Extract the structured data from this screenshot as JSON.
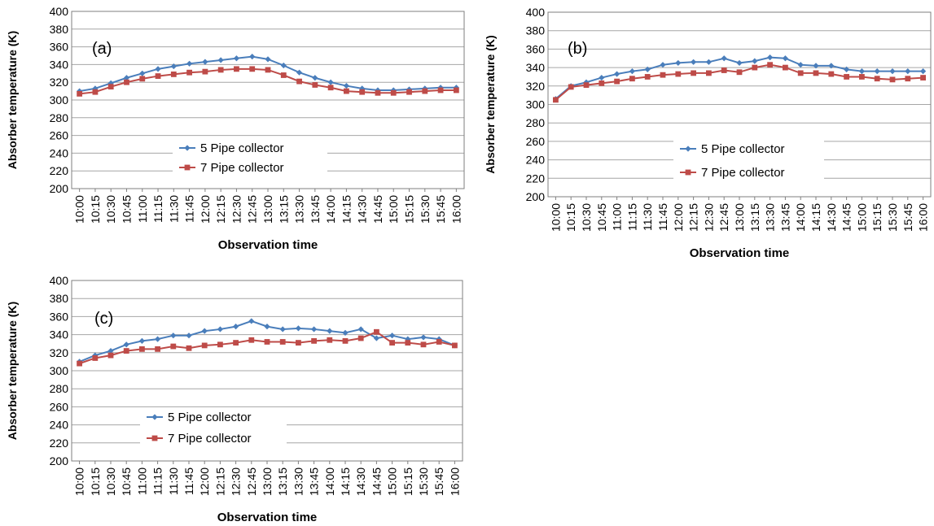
{
  "chart_data": [
    {
      "type": "line",
      "panel_label": "(a)",
      "xlabel": "Observation time",
      "ylabel": "Absorber temperature (K)",
      "ylim": [
        200,
        400
      ],
      "yticks": [
        200,
        220,
        240,
        260,
        280,
        300,
        320,
        340,
        360,
        380,
        400
      ],
      "grid": true,
      "legend_position": "center-left",
      "categories": [
        "10:00",
        "10:15",
        "10:30",
        "10:45",
        "11:00",
        "11:15",
        "11:30",
        "11:45",
        "12:00",
        "12:15",
        "12:30",
        "12:45",
        "13:00",
        "13:15",
        "13:30",
        "13:45",
        "14:00",
        "14:15",
        "14:30",
        "14:45",
        "15:00",
        "15:15",
        "15:30",
        "15:45",
        "16:00"
      ],
      "series": [
        {
          "name": "5 Pipe collector",
          "color": "#4a7ebb",
          "marker": "diamond",
          "values": [
            310,
            313,
            319,
            325,
            330,
            335,
            338,
            341,
            343,
            345,
            347,
            349,
            346,
            339,
            331,
            325,
            320,
            316,
            313,
            311,
            311,
            312,
            313,
            314,
            314
          ]
        },
        {
          "name": "7 Pipe collector",
          "color": "#be4b48",
          "marker": "square",
          "values": [
            307,
            309,
            315,
            320,
            324,
            327,
            329,
            331,
            332,
            334,
            335,
            335,
            334,
            328,
            321,
            317,
            314,
            310,
            309,
            308,
            308,
            309,
            310,
            311,
            311
          ]
        }
      ]
    },
    {
      "type": "line",
      "panel_label": "(b)",
      "xlabel": "Observation time",
      "ylabel": "Absorber temperature (K)",
      "ylim": [
        200,
        400
      ],
      "yticks": [
        200,
        220,
        240,
        260,
        280,
        300,
        320,
        340,
        360,
        380,
        400
      ],
      "grid": true,
      "legend_position": "center-right",
      "categories": [
        "10:00",
        "10:15",
        "10:30",
        "10:45",
        "11:00",
        "11:15",
        "11:30",
        "11:45",
        "12:00",
        "12:15",
        "12:30",
        "12:45",
        "13:00",
        "13:15",
        "13:30",
        "13:45",
        "14:00",
        "14:15",
        "14:30",
        "14:45",
        "15:00",
        "15:15",
        "15:30",
        "15:45",
        "16:00"
      ],
      "series": [
        {
          "name": "5 Pipe collector",
          "color": "#4a7ebb",
          "marker": "diamond",
          "values": [
            306,
            320,
            324,
            329,
            333,
            336,
            338,
            343,
            345,
            346,
            346,
            350,
            345,
            347,
            351,
            350,
            343,
            342,
            342,
            338,
            336,
            336,
            336,
            336,
            336
          ]
        },
        {
          "name": "7 Pipe collector",
          "color": "#be4b48",
          "marker": "square",
          "values": [
            305,
            319,
            321,
            323,
            325,
            328,
            330,
            332,
            333,
            334,
            334,
            337,
            335,
            340,
            343,
            340,
            334,
            334,
            333,
            330,
            330,
            328,
            327,
            328,
            329
          ]
        }
      ]
    },
    {
      "type": "line",
      "panel_label": "(c)",
      "xlabel": "Observation time",
      "ylabel": "Absorber temperature (K)",
      "ylim": [
        200,
        400
      ],
      "yticks": [
        200,
        220,
        240,
        260,
        280,
        300,
        320,
        340,
        360,
        380,
        400
      ],
      "grid": true,
      "legend_position": "center-left",
      "categories": [
        "10:00",
        "10:15",
        "10:30",
        "10:45",
        "11:00",
        "11:15",
        "11:30",
        "11:45",
        "12:00",
        "12:15",
        "12:30",
        "12:45",
        "13:00",
        "13:15",
        "13:30",
        "13:45",
        "14:00",
        "14:15",
        "14:30",
        "14:45",
        "15:00",
        "15:15",
        "15:30",
        "15:45",
        "16:00"
      ],
      "series": [
        {
          "name": "5 Pipe collector",
          "color": "#4a7ebb",
          "marker": "diamond",
          "values": [
            310,
            317,
            322,
            329,
            333,
            335,
            339,
            339,
            344,
            346,
            349,
            355,
            349,
            346,
            347,
            346,
            344,
            342,
            346,
            336,
            339,
            335,
            337,
            335,
            328
          ]
        },
        {
          "name": "7 Pipe collector",
          "color": "#be4b48",
          "marker": "square",
          "values": [
            308,
            314,
            317,
            322,
            324,
            324,
            327,
            325,
            328,
            329,
            331,
            334,
            332,
            332,
            331,
            333,
            334,
            333,
            336,
            343,
            331,
            331,
            329,
            332,
            328
          ]
        }
      ]
    }
  ]
}
